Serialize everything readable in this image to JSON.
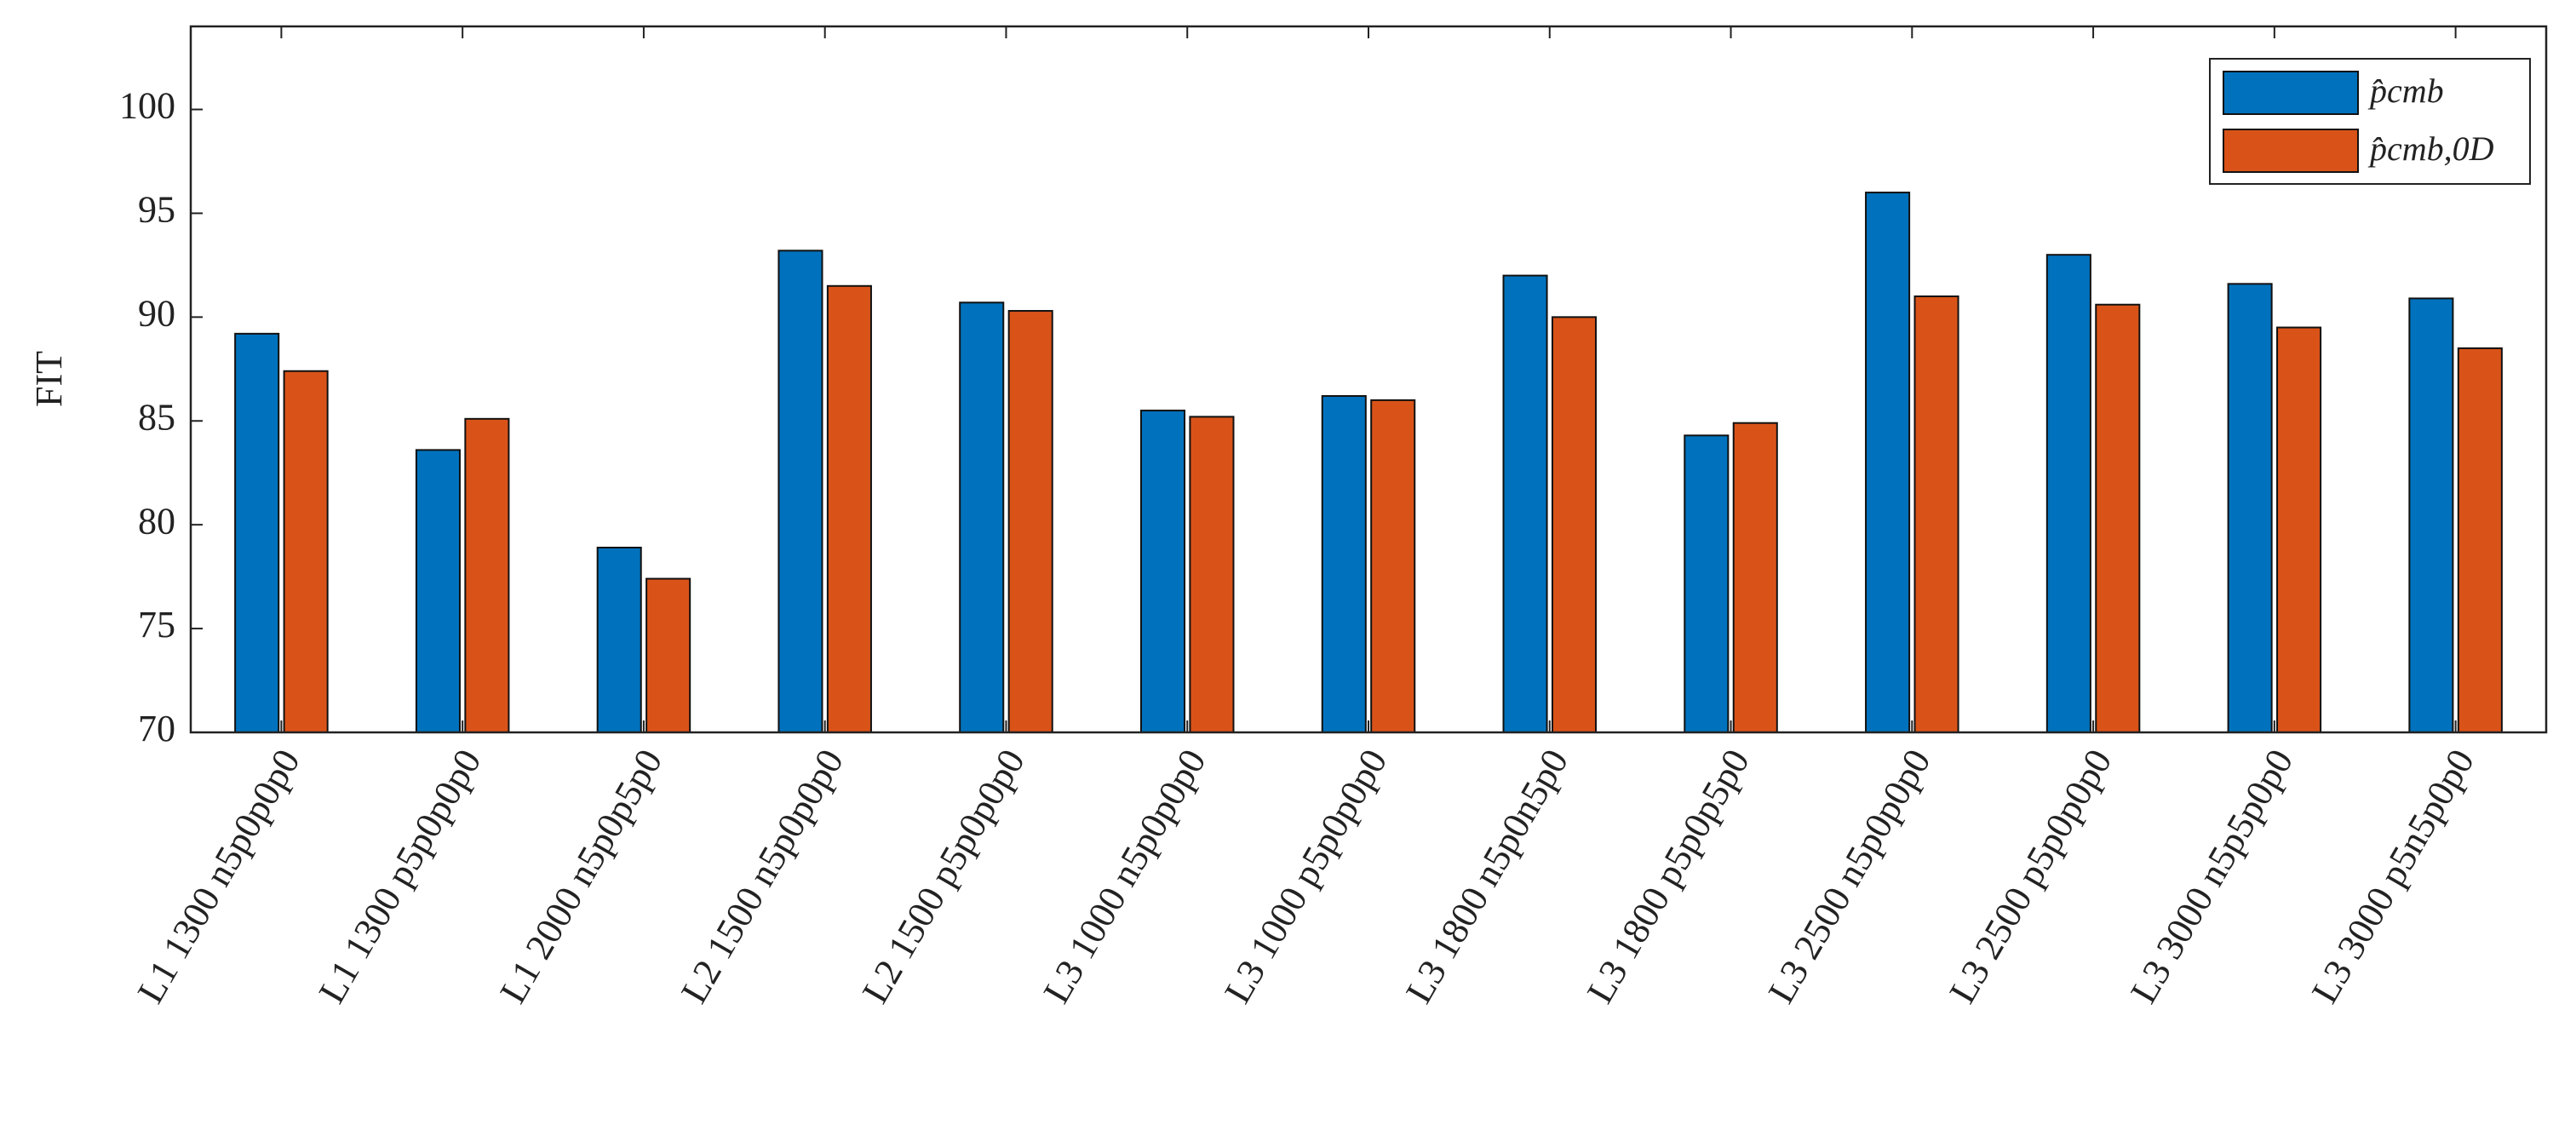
{
  "chart_data": {
    "type": "bar",
    "y_label": "FIT",
    "categories": [
      "L1 1300 n5p0p0p0",
      "L1 1300 p5p0p0p0",
      "L1 2000 n5p0p5p0",
      "L2 1500 n5p0p0p0",
      "L2 1500 p5p0p0p0",
      "L3 1000 n5p0p0p0",
      "L3 1000 p5p0p0p0",
      "L3 1800 n5p0n5p0",
      "L3 1800 p5p0p5p0",
      "L3 2500 n5p0p0p0",
      "L3 2500 p5p0p0p0",
      "L3 3000 n5p5p0p0",
      "L3 3000 p5n5p0p0"
    ],
    "series": [
      {
        "name": "p̂cmb",
        "color": "#0072BD",
        "values": [
          89.2,
          83.6,
          78.9,
          93.2,
          90.7,
          85.5,
          86.2,
          92.0,
          84.3,
          96.0,
          93.0,
          91.6,
          90.9
        ]
      },
      {
        "name": "p̂cmb,0D",
        "color": "#D95319",
        "values": [
          87.4,
          85.1,
          77.4,
          91.5,
          90.3,
          85.2,
          86.0,
          90.0,
          84.9,
          91.0,
          90.6,
          89.5,
          88.5
        ]
      }
    ],
    "ylim": [
      70,
      104
    ],
    "yticks": [
      70,
      75,
      80,
      85,
      90,
      95,
      100
    ],
    "legend": "upper-right",
    "grid": false
  }
}
